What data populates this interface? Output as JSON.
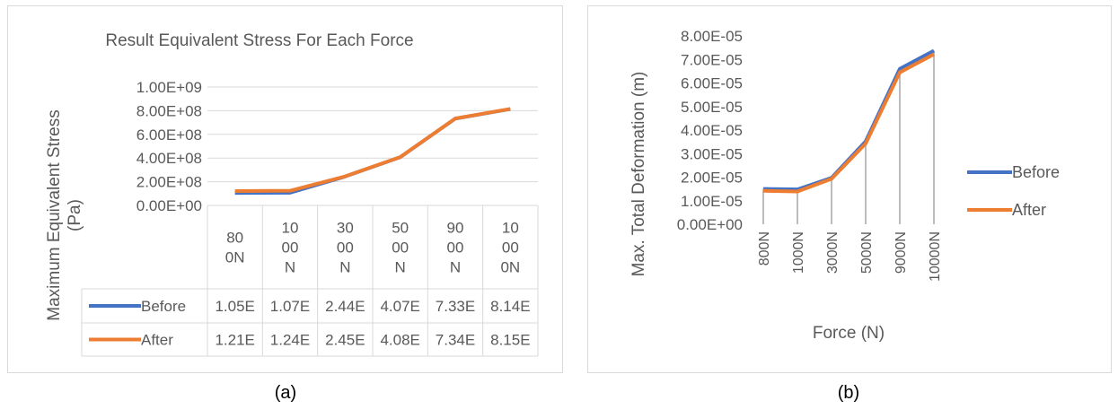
{
  "chart_data": [
    {
      "type": "line",
      "title": "Result Equivalent Stress For Each Force",
      "xlabel": "",
      "ylabel": "Maximum Equivalent Stress (Pa)",
      "categories": [
        "800N",
        "1000N",
        "3000N",
        "5000N",
        "9000N",
        "10000N"
      ],
      "category_labels": [
        [
          "80",
          "0N"
        ],
        [
          "10",
          "00",
          "N"
        ],
        [
          "30",
          "00",
          "N"
        ],
        [
          "50",
          "00",
          "N"
        ],
        [
          "90",
          "00",
          "N"
        ],
        [
          "10",
          "00",
          "0N"
        ]
      ],
      "ylim": [
        0,
        1000000000
      ],
      "yticks": [
        "0.00E+00",
        "2.00E+08",
        "4.00E+08",
        "6.00E+08",
        "8.00E+08",
        "1.00E+09"
      ],
      "grid": true,
      "legend": "data-table",
      "series": [
        {
          "name": "Before",
          "color": "#4472c4",
          "values": [
            105000000,
            107000000,
            244000000,
            407000000,
            733000000,
            814000000
          ],
          "table_labels": [
            "1.05E",
            "1.07E",
            "2.44E",
            "4.07E",
            "7.33E",
            "8.14E"
          ]
        },
        {
          "name": "After",
          "color": "#ed7d31",
          "values": [
            121000000,
            124000000,
            245000000,
            408000000,
            734000000,
            815000000
          ],
          "table_labels": [
            "1.21E",
            "1.24E",
            "2.45E",
            "4.08E",
            "7.34E",
            "8.15E"
          ]
        }
      ]
    },
    {
      "type": "line",
      "title": "",
      "xlabel": "Force (N)",
      "ylabel": "Max. Total Deformation (m)",
      "categories": [
        "800N",
        "1000N",
        "3000N",
        "5000N",
        "9000N",
        "10000N"
      ],
      "ylim": [
        0,
        8e-05
      ],
      "yticks": [
        "0.00E+00",
        "1.00E-05",
        "2.00E-05",
        "3.00E-05",
        "4.00E-05",
        "5.00E-05",
        "6.00E-05",
        "7.00E-05",
        "8.00E-05"
      ],
      "drop_lines": true,
      "legend": "right",
      "series": [
        {
          "name": "Before",
          "color": "#4472c4",
          "values": [
            1.5e-05,
            1.48e-05,
            1.97e-05,
            3.52e-05,
            6.6e-05,
            7.37e-05
          ]
        },
        {
          "name": "After",
          "color": "#ed7d31",
          "values": [
            1.42e-05,
            1.39e-05,
            1.93e-05,
            3.43e-05,
            6.45e-05,
            7.22e-05
          ]
        }
      ]
    }
  ],
  "captions": {
    "a": "(a)",
    "b": "(b)"
  }
}
